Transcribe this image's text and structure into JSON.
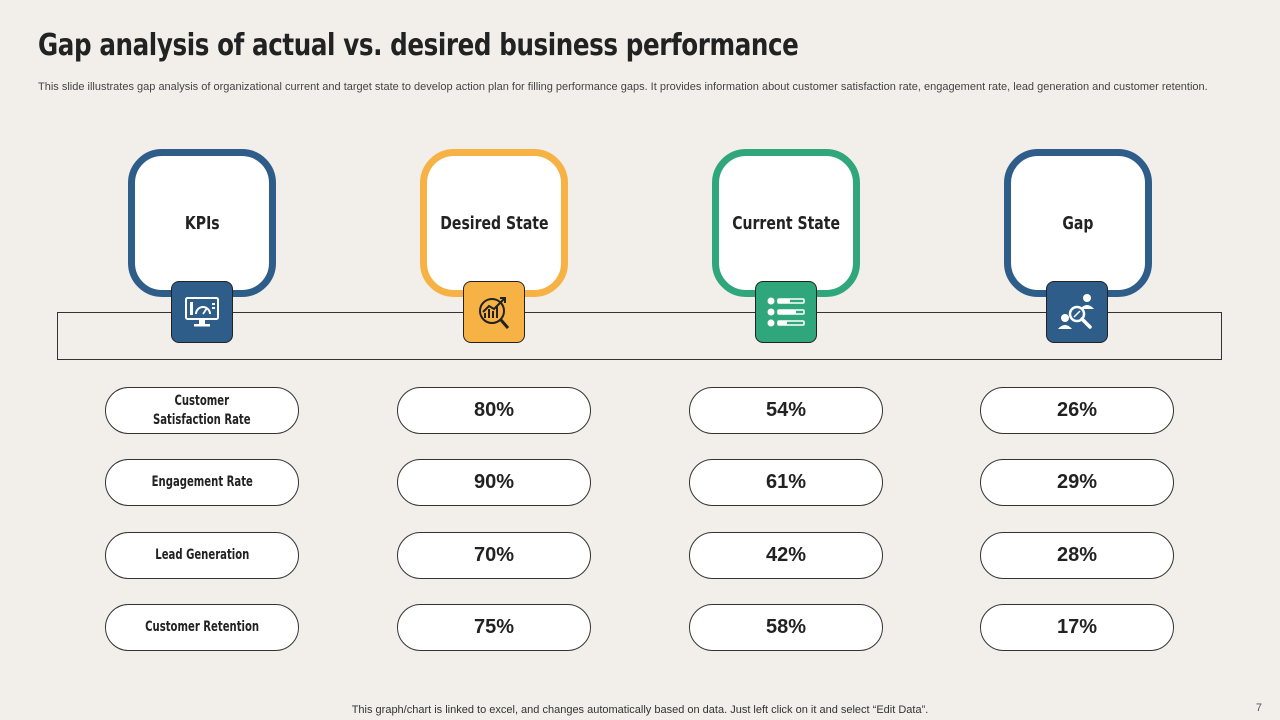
{
  "title": "Gap analysis of actual vs. desired business performance",
  "subtitle": "This slide illustrates gap analysis of organizational current and target state to develop action plan for filling performance gaps. It provides information about customer satisfaction rate, engagement rate, lead generation and customer retention.",
  "columns": [
    {
      "label": "KPIs",
      "color": "#2e5d8a",
      "icon": "monitor-dashboard-icon"
    },
    {
      "label": "Desired State",
      "color": "#f7b245",
      "icon": "growth-target-icon"
    },
    {
      "label": "Current State",
      "color": "#2fa67c",
      "icon": "checklist-icon"
    },
    {
      "label": "Gap",
      "color": "#2e5d8a",
      "icon": "search-users-icon"
    }
  ],
  "rows": [
    {
      "kpi": "Customer\nSatisfaction Rate",
      "desired": "80%",
      "current": "54%",
      "gap": "26%"
    },
    {
      "kpi": "Engagement Rate",
      "desired": "90%",
      "current": "61%",
      "gap": "29%"
    },
    {
      "kpi": "Lead Generation",
      "desired": "70%",
      "current": "42%",
      "gap": "28%"
    },
    {
      "kpi": "Customer Retention",
      "desired": "75%",
      "current": "58%",
      "gap": "17%"
    }
  ],
  "footer": "This graph/chart is linked to excel,  and changes automatically based on data. Just left click on it and select “Edit Data”.",
  "page_number": "7"
}
